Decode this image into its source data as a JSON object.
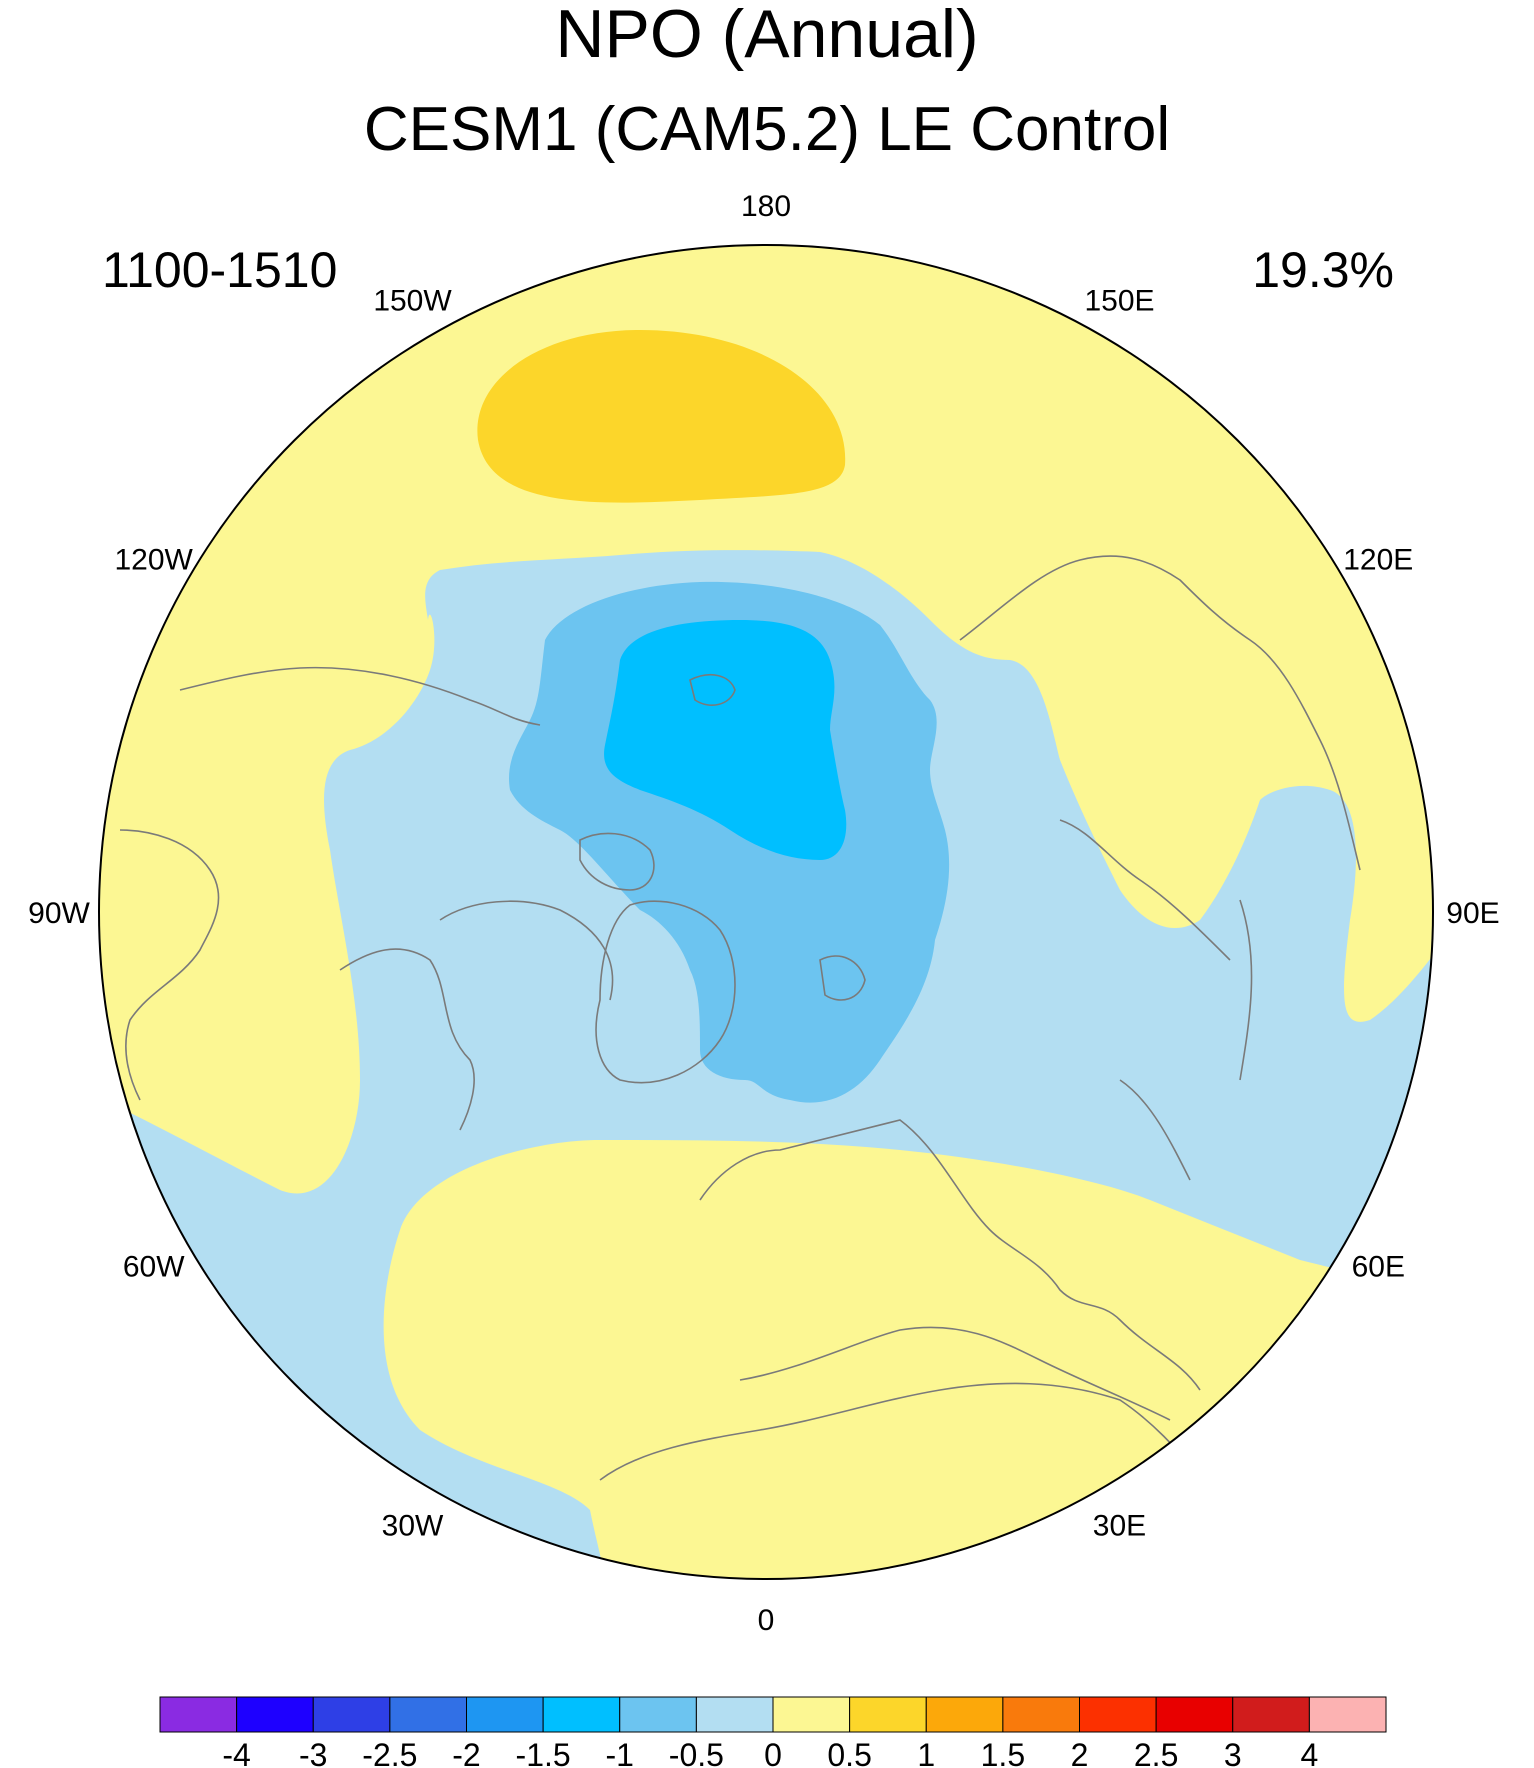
{
  "title": "NPO (Annual)",
  "subtitle": "CESM1 (CAM5.2) LE Control",
  "left_label": "1100-1510",
  "right_label": "19.3%",
  "longitude_labels": [
    {
      "text": "180",
      "lon": 180
    },
    {
      "text": "150E",
      "lon": 150
    },
    {
      "text": "120E",
      "lon": 120
    },
    {
      "text": "90E",
      "lon": 90
    },
    {
      "text": "60E",
      "lon": 60
    },
    {
      "text": "30E",
      "lon": 30
    },
    {
      "text": "0",
      "lon": 0
    },
    {
      "text": "30W",
      "lon": -30
    },
    {
      "text": "60W",
      "lon": -60
    },
    {
      "text": "90W",
      "lon": -90
    },
    {
      "text": "120W",
      "lon": -120
    },
    {
      "text": "150W",
      "lon": -150
    }
  ],
  "colorbar": {
    "colors": [
      "#8a2be2",
      "#1e00ff",
      "#2e3fe6",
      "#3170e6",
      "#1e96f2",
      "#00bfff",
      "#6cc4f0",
      "#b3def2",
      "#fcf793",
      "#fcd62a",
      "#fca80a",
      "#f97a0c",
      "#fc3000",
      "#e80000",
      "#d11c1c",
      "#fcb2b2"
    ],
    "labels": [
      "-4",
      "-3",
      "-2.5",
      "-2",
      "-1.5",
      "-1",
      "-0.5",
      "0",
      "0.5",
      "1",
      "1.5",
      "2",
      "2.5",
      "3",
      "4"
    ]
  },
  "field_colors": {
    "positive_weak": "#fcf793",
    "positive_strong": "#fcd62a",
    "negative_weak": "#b3def2",
    "negative_mid": "#6cc4f0",
    "negative_strong": "#00bfff",
    "coastline": "#7a7a7a"
  }
}
